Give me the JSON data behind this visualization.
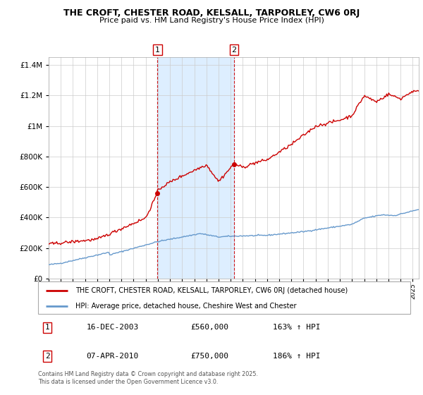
{
  "title": "THE CROFT, CHESTER ROAD, KELSALL, TARPORLEY, CW6 0RJ",
  "subtitle": "Price paid vs. HM Land Registry's House Price Index (HPI)",
  "red_label": "THE CROFT, CHESTER ROAD, KELSALL, TARPORLEY, CW6 0RJ (detached house)",
  "blue_label": "HPI: Average price, detached house, Cheshire West and Chester",
  "marker1_date": "16-DEC-2003",
  "marker1_price": 560000,
  "marker1_pct": "163%",
  "marker2_date": "07-APR-2010",
  "marker2_price": 750000,
  "marker2_pct": "186%",
  "footer": "Contains HM Land Registry data © Crown copyright and database right 2025.\nThis data is licensed under the Open Government Licence v3.0.",
  "ylim": [
    0,
    1450000
  ],
  "yticks": [
    0,
    200000,
    400000,
    600000,
    800000,
    1000000,
    1200000,
    1400000
  ],
  "red_color": "#cc0000",
  "blue_color": "#6699cc",
  "shading_color": "#ddeeff",
  "marker1_x": 2003.96,
  "marker2_x": 2010.27,
  "xlim_start": 1995,
  "xlim_end": 2025.5
}
